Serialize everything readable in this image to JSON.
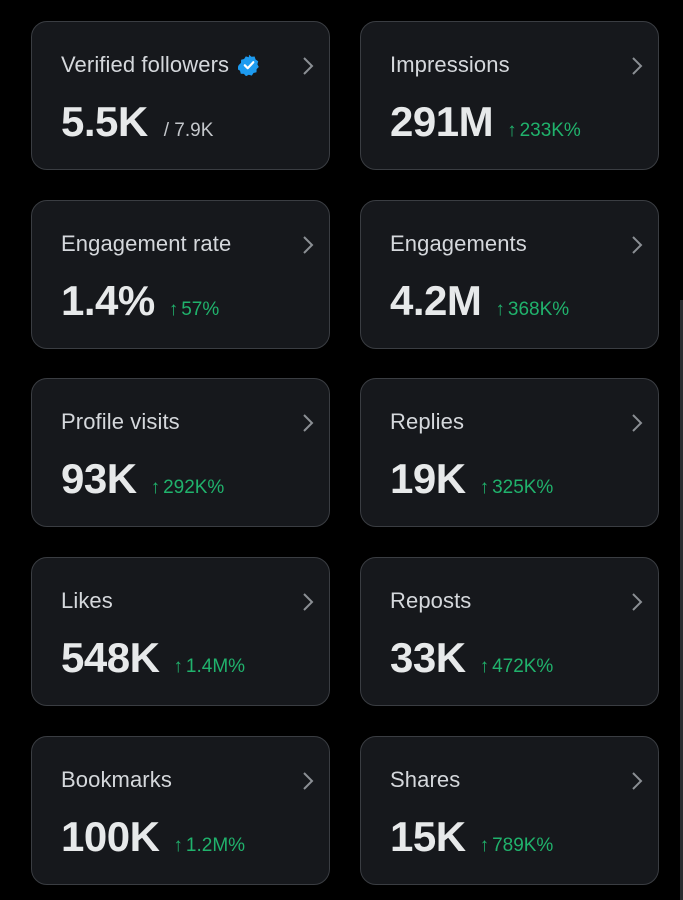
{
  "cards": [
    {
      "title": "Verified followers",
      "value": "5.5K",
      "sub": "/ 7.9K",
      "delta": "",
      "verified": true
    },
    {
      "title": "Impressions",
      "value": "291M",
      "sub": "",
      "delta": "233K%"
    },
    {
      "title": "Engagement rate",
      "value": "1.4%",
      "sub": "",
      "delta": "57%"
    },
    {
      "title": "Engagements",
      "value": "4.2M",
      "sub": "",
      "delta": "368K%"
    },
    {
      "title": "Profile visits",
      "value": "93K",
      "sub": "",
      "delta": "292K%"
    },
    {
      "title": "Replies",
      "value": "19K",
      "sub": "",
      "delta": "325K%"
    },
    {
      "title": "Likes",
      "value": "548K",
      "sub": "",
      "delta": "1.4M%"
    },
    {
      "title": "Reposts",
      "value": "33K",
      "sub": "",
      "delta": "472K%"
    },
    {
      "title": "Bookmarks",
      "value": "100K",
      "sub": "",
      "delta": "1.2M%"
    },
    {
      "title": "Shares",
      "value": "15K",
      "sub": "",
      "delta": "789K%"
    }
  ],
  "icons": {
    "up_arrow": "↑",
    "chevron": "chevron-right-icon",
    "verified": "verified-badge-icon"
  },
  "colors": {
    "background": "#000000",
    "card": "#16181c",
    "card_border": "#3a3d42",
    "positive": "#20b26c",
    "verified": "#1d9bf0"
  }
}
